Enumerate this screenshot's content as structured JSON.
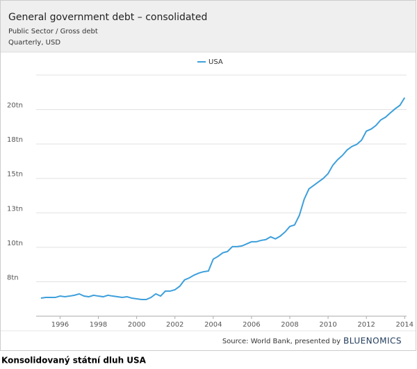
{
  "chart_data": {
    "type": "line",
    "title": "General government debt – consolidated",
    "subtitle": "Public Sector / Gross debt",
    "frequency_note": "Quarterly, USD",
    "source": "Source: World Bank, presented by",
    "brand": "BLUENOMICS",
    "caption": "Konsolidovaný státní dluh USA",
    "x": [
      1995,
      1995.25,
      1995.5,
      1995.75,
      1996,
      1996.25,
      1996.5,
      1996.75,
      1997,
      1997.25,
      1997.5,
      1997.75,
      1998,
      1998.25,
      1998.5,
      1998.75,
      1999,
      1999.25,
      1999.5,
      1999.75,
      2000,
      2000.25,
      2000.5,
      2000.75,
      2001,
      2001.25,
      2001.5,
      2001.75,
      2002,
      2002.25,
      2002.5,
      2002.75,
      2003,
      2003.25,
      2003.5,
      2003.75,
      2004,
      2004.25,
      2004.5,
      2004.75,
      2005,
      2005.25,
      2005.5,
      2005.75,
      2006,
      2006.25,
      2006.5,
      2006.75,
      2007,
      2007.25,
      2007.5,
      2007.75,
      2008,
      2008.25,
      2008.5,
      2008.75,
      2009,
      2009.25,
      2009.5,
      2009.75,
      2010,
      2010.25,
      2010.5,
      2010.75,
      2011,
      2011.25,
      2011.5,
      2011.75,
      2012,
      2012.25,
      2012.5,
      2012.75,
      2013,
      2013.25,
      2013.5,
      2013.75,
      2014
    ],
    "series": [
      {
        "name": "USA",
        "color": "#3d9fdb",
        "values": [
          6.31,
          6.36,
          6.36,
          6.36,
          6.46,
          6.41,
          6.46,
          6.52,
          6.62,
          6.46,
          6.41,
          6.52,
          6.46,
          6.41,
          6.52,
          6.46,
          6.41,
          6.36,
          6.41,
          6.31,
          6.26,
          6.21,
          6.21,
          6.36,
          6.62,
          6.46,
          6.82,
          6.82,
          6.92,
          7.17,
          7.63,
          7.78,
          7.98,
          8.13,
          8.23,
          8.28,
          9.14,
          9.34,
          9.6,
          9.7,
          10.05,
          10.05,
          10.1,
          10.25,
          10.4,
          10.4,
          10.5,
          10.56,
          10.76,
          10.61,
          10.81,
          11.11,
          11.51,
          11.62,
          12.32,
          13.48,
          14.24,
          14.49,
          14.75,
          15.0,
          15.35,
          15.96,
          16.36,
          16.67,
          17.07,
          17.32,
          17.47,
          17.78,
          18.43,
          18.58,
          18.84,
          19.24,
          19.44,
          19.75,
          20.05,
          20.3,
          20.86
        ]
      }
    ],
    "xlim": [
      1994.75,
      2014.1
    ],
    "xticks": [
      1996,
      1998,
      2000,
      2002,
      2004,
      2006,
      2008,
      2010,
      2012,
      2014
    ],
    "ylim": [
      5,
      22.5
    ],
    "yticks": [
      {
        "value": 7.5,
        "label": "8tn"
      },
      {
        "value": 10,
        "label": "10tn"
      },
      {
        "value": 12.5,
        "label": "13tn"
      },
      {
        "value": 15,
        "label": "15tn"
      },
      {
        "value": 17.5,
        "label": "18tn"
      },
      {
        "value": 20,
        "label": "20tn"
      }
    ],
    "grid": true,
    "legend": "top"
  }
}
